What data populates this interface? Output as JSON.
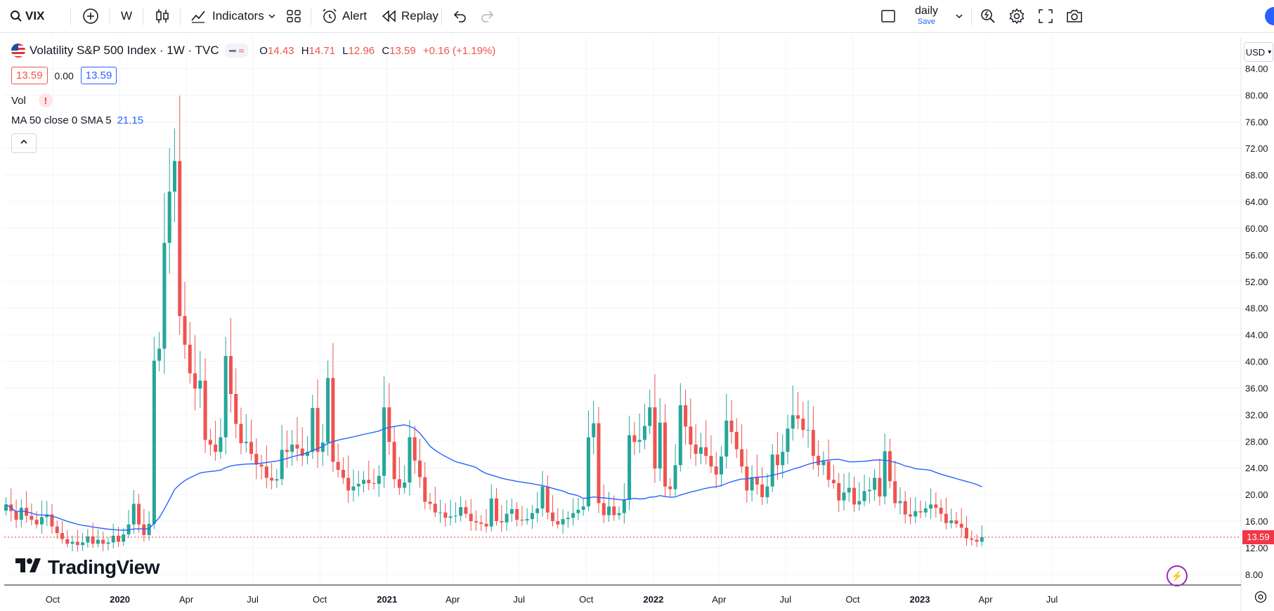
{
  "toolbar": {
    "symbol": "VIX",
    "interval": "W",
    "indicators_label": "Indicators",
    "alert_label": "Alert",
    "replay_label": "Replay",
    "layout_name": "daily",
    "save_label": "Save"
  },
  "legend": {
    "title": "Volatility S&P 500 Index · 1W · TVC",
    "o_label": "O",
    "o_value": "14.43",
    "h_label": "H",
    "h_value": "14.71",
    "l_label": "L",
    "l_value": "12.96",
    "c_label": "C",
    "c_value": "13.59",
    "change": "+0.16 (+1.19%)",
    "bid": "13.59",
    "spread": "0.00",
    "ask": "13.59",
    "vol_label": "Vol",
    "vol_warning": "!",
    "ma_label": "MA 50 close 0 SMA 5",
    "ma_value": "21.15"
  },
  "price_scale": {
    "currency": "USD",
    "last_price": "13.59"
  },
  "branding": {
    "logo_text": "TradingView"
  },
  "colors": {
    "up": "#26a69a",
    "down": "#ef5350",
    "ma": "#2962ff",
    "grid": "#f0f3fa",
    "last_price_line": "#f23645"
  },
  "chart_data": {
    "type": "candlestick",
    "symbol": "VIX",
    "interval": "1W",
    "ylim": [
      6.4,
      88.8
    ],
    "yticks": [
      8,
      12,
      16,
      20,
      24,
      28,
      32,
      36,
      40,
      44,
      48,
      52,
      56,
      60,
      64,
      68,
      72,
      76,
      80,
      84
    ],
    "ytick_labels": [
      "8.00",
      "12.00",
      "16.00",
      "20.00",
      "24.00",
      "28.00",
      "32.00",
      "36.00",
      "40.00",
      "44.00",
      "48.00",
      "52.00",
      "56.00",
      "60.00",
      "64.00",
      "68.00",
      "72.00",
      "76.00",
      "80.00",
      "84.00"
    ],
    "xtick_labels": [
      "Oct",
      "2020",
      "Apr",
      "Jul",
      "Oct",
      "2021",
      "Apr",
      "Jul",
      "Oct",
      "2022",
      "Apr",
      "Jul",
      "Oct",
      "2023",
      "Apr",
      "Jul"
    ],
    "xtick_dates": [
      "2019-10-01",
      "2020-01-01",
      "2020-04-01",
      "2020-07-01",
      "2020-10-01",
      "2021-01-01",
      "2021-04-01",
      "2021-07-01",
      "2021-10-01",
      "2022-01-01",
      "2022-04-01",
      "2022-07-01",
      "2022-10-01",
      "2023-01-01",
      "2023-04-01",
      "2023-07-01"
    ],
    "x_start": "2019-07-29",
    "closes": [
      18.5,
      17.5,
      16.2,
      18.0,
      16.8,
      16.2,
      15.5,
      16.6,
      17.0,
      15.2,
      14.2,
      13.3,
      12.6,
      12.9,
      12.4,
      12.8,
      13.7,
      12.6,
      13.2,
      12.6,
      12.8,
      13.8,
      12.9,
      14.0,
      15.5,
      18.6,
      15.5,
      13.9,
      15.6,
      40.1,
      41.9,
      57.8,
      65.5,
      70.1,
      46.8,
      42.5,
      38.2,
      35.9,
      37.1,
      28.2,
      27.5,
      26.4,
      28.6,
      40.8,
      35.1,
      30.6,
      27.7,
      27.9,
      26.1,
      24.5,
      24.2,
      22.5,
      22.1,
      22.3,
      26.7,
      26.4,
      27.5,
      26.9,
      25.8,
      26.4,
      33.0,
      26.4,
      27.8,
      37.5,
      24.9,
      23.7,
      22.5,
      20.6,
      21.2,
      21.6,
      22.2,
      21.7,
      21.6,
      22.8,
      33.1,
      27.9,
      22.3,
      21.0,
      21.8,
      28.6,
      25.1,
      22.6,
      18.9,
      18.6,
      17.3,
      17.3,
      16.5,
      16.7,
      16.8,
      18.1,
      17.1,
      16.0,
      15.8,
      15.6,
      15.2,
      19.4,
      16.0,
      15.8,
      17.1,
      17.8,
      16.2,
      16.1,
      16.3,
      17.2,
      17.9,
      21.2,
      17.3,
      16.0,
      15.5,
      16.3,
      16.5,
      17.2,
      17.7,
      18.2,
      28.6,
      30.7,
      18.7,
      16.9,
      18.2,
      16.9,
      17.2,
      19.2,
      28.9,
      27.9,
      28.2,
      30.3,
      33.1,
      23.9,
      30.8,
      21.2,
      20.8,
      24.4,
      33.4,
      30.2,
      27.5,
      26.1,
      27.1,
      25.8,
      24.2,
      23.0,
      25.7,
      31.1,
      29.4,
      26.8,
      24.2,
      20.6,
      22.6,
      21.5,
      19.6,
      21.2,
      26.0,
      24.4,
      26.4,
      29.9,
      31.9,
      31.4,
      29.7,
      29.7,
      25.8,
      24.4,
      25.0,
      22.2,
      21.7,
      19.1,
      20.3,
      21.0,
      18.5,
      19.0,
      20.5,
      20.7,
      22.5,
      19.7,
      26.5,
      22.0,
      18.7,
      19.0,
      17.0,
      16.7,
      17.5,
      17.3,
      17.9,
      18.5,
      18.0,
      17.1,
      15.7,
      16.1,
      15.6,
      15.0,
      13.4,
      13.2,
      12.9,
      13.59
    ],
    "ma": {
      "name": "MA 50 close 0 SMA 5",
      "last_value": 21.15
    },
    "last_price": 13.59
  }
}
